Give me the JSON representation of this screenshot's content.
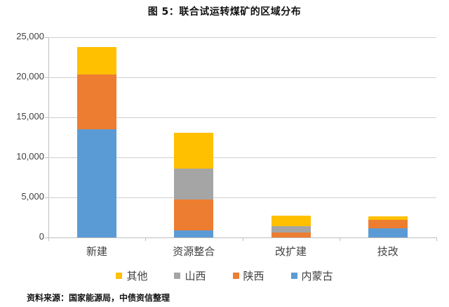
{
  "title": "图 5：联合试运转煤矿的区域分布",
  "source": "资料来源：国家能源局，中债资信整理",
  "colors": {
    "其他": "#ffc000",
    "山西": "#a5a5a5",
    "陕西": "#ed7d31",
    "内蒙古": "#5b9bd5"
  },
  "legend": [
    {
      "label": "其他",
      "color": "#ffc000"
    },
    {
      "label": "山西",
      "color": "#a5a5a5"
    },
    {
      "label": "陕西",
      "color": "#ed7d31"
    },
    {
      "label": "内蒙古",
      "color": "#5b9bd5"
    }
  ],
  "y_ticks": [
    "0",
    "5,000",
    "10,000",
    "15,000",
    "20,000",
    "25,000"
  ],
  "chart_data": {
    "type": "bar",
    "stacked": true,
    "title": "图 5：联合试运转煤矿的区域分布",
    "xlabel": "",
    "ylabel": "",
    "ylim": [
      0,
      25000
    ],
    "grid": true,
    "legend_position": "bottom",
    "categories": [
      "新建",
      "资源整合",
      "改扩建",
      "技改"
    ],
    "series": [
      {
        "name": "内蒙古",
        "color": "#5b9bd5",
        "values": [
          13500,
          880,
          0,
          1150
        ]
      },
      {
        "name": "陕西",
        "color": "#ed7d31",
        "values": [
          6850,
          3860,
          600,
          1050
        ]
      },
      {
        "name": "山西",
        "color": "#a5a5a5",
        "values": [
          0,
          3860,
          800,
          0
        ]
      },
      {
        "name": "其他",
        "color": "#ffc000",
        "values": [
          3450,
          4470,
          1300,
          450
        ]
      }
    ],
    "totals": [
      23800,
      13070,
      2700,
      2650
    ],
    "annotations": [
      "资料来源：国家能源局，中债资信整理"
    ]
  }
}
